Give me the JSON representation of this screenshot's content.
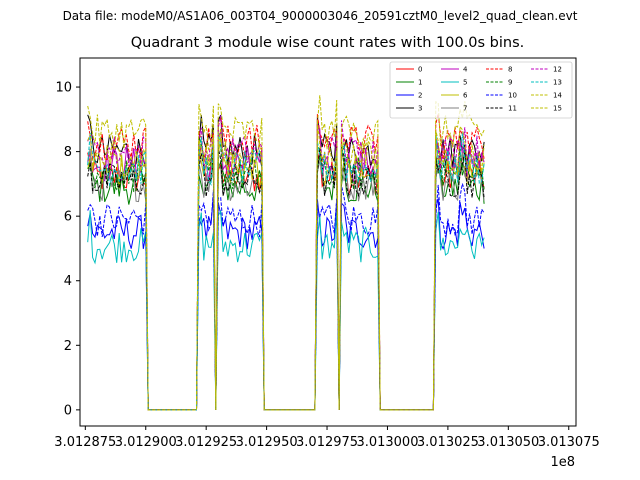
{
  "suptitle": "Data file: modeM0/AS1A06_003T04_9000003046_20591cztM0_level2_quad_clean.evt",
  "chart_data": {
    "type": "line",
    "title": "Quadrant 3 module wise count rates with 100.0s bins.",
    "xlabel": "",
    "ylabel": "",
    "x_offset_label": "1e8",
    "xlim": [
      301287280,
      301307800
    ],
    "ylim": [
      -0.5,
      10.9
    ],
    "x_ticks": [
      301287500,
      301290000,
      301292500,
      301295000,
      301297500,
      301300000,
      301302500,
      301305000,
      301307500
    ],
    "x_tick_labels": [
      "3.012875",
      "3.012900",
      "3.012925",
      "3.012950",
      "3.012975",
      "3.013000",
      "3.013025",
      "3.013050",
      "3.013075"
    ],
    "y_ticks": [
      0,
      2,
      4,
      6,
      8,
      10
    ],
    "y_tick_labels": [
      "0",
      "2",
      "4",
      "6",
      "8",
      "10"
    ],
    "legend_position": "top-right",
    "bin_seconds": 100,
    "on_segments": [
      [
        301287600,
        301290000
      ],
      [
        301292200,
        301292800
      ],
      [
        301292950,
        301294800
      ],
      [
        301297050,
        301297950
      ],
      [
        301298050,
        301299600
      ],
      [
        301302000,
        301303000
      ],
      [
        301303100,
        301304000
      ]
    ],
    "series": [
      {
        "name": "0",
        "color": "#ff0000",
        "style": "solid",
        "level": 7.2
      },
      {
        "name": "1",
        "color": "#008000",
        "style": "solid",
        "level": 6.9
      },
      {
        "name": "2",
        "color": "#0000ff",
        "style": "solid",
        "level": 5.5
      },
      {
        "name": "3",
        "color": "#000000",
        "style": "solid",
        "level": 8.0
      },
      {
        "name": "4",
        "color": "#bf00bf",
        "style": "solid",
        "level": 7.6
      },
      {
        "name": "5",
        "color": "#00bfbf",
        "style": "solid",
        "level": 5.1
      },
      {
        "name": "6",
        "color": "#bfbf00",
        "style": "solid",
        "level": 7.4
      },
      {
        "name": "7",
        "color": "#808080",
        "style": "solid",
        "level": 7.0
      },
      {
        "name": "8",
        "color": "#ff0000",
        "style": "dashed",
        "level": 8.3
      },
      {
        "name": "9",
        "color": "#008000",
        "style": "dashed",
        "level": 7.3
      },
      {
        "name": "10",
        "color": "#0000ff",
        "style": "dashed",
        "level": 5.9
      },
      {
        "name": "11",
        "color": "#000000",
        "style": "dashed",
        "level": 7.1
      },
      {
        "name": "12",
        "color": "#bf00bf",
        "style": "dashed",
        "level": 8.0
      },
      {
        "name": "13",
        "color": "#00bfbf",
        "style": "dashed",
        "level": 7.5
      },
      {
        "name": "14",
        "color": "#bfbf00",
        "style": "dashed",
        "level": 8.6
      },
      {
        "name": "15",
        "color": "#bfbf00",
        "style": "dashed",
        "level": 7.8
      }
    ]
  }
}
